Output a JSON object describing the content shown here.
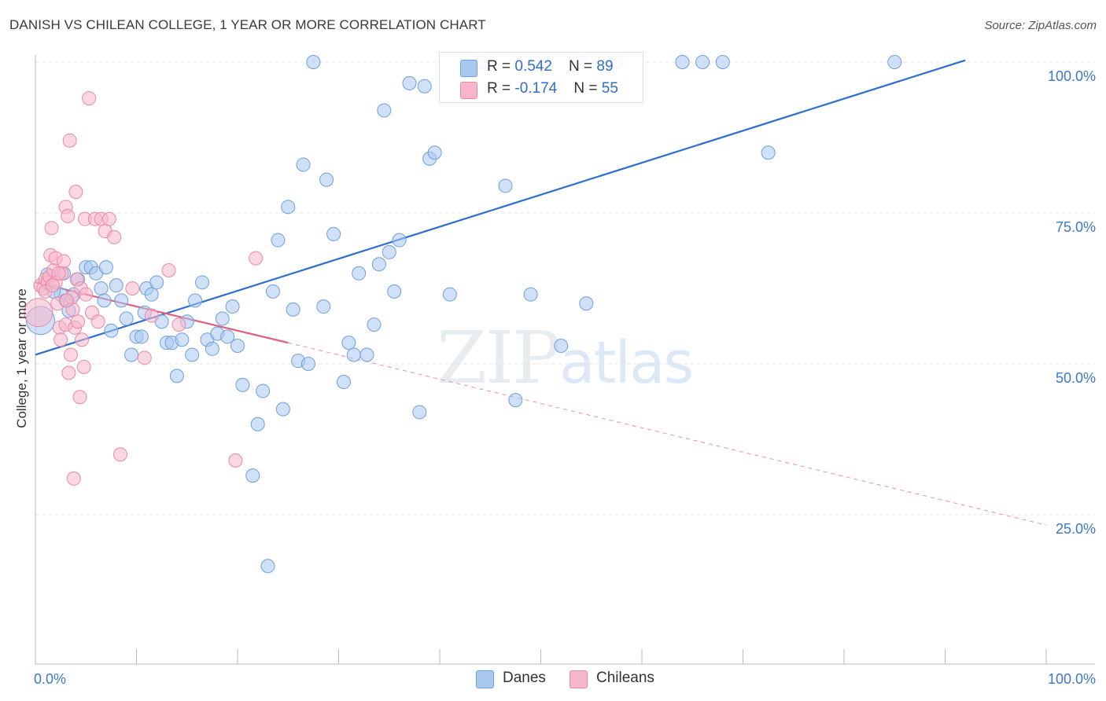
{
  "header": {
    "title": "DANISH VS CHILEAN COLLEGE, 1 YEAR OR MORE CORRELATION CHART",
    "source": "Source: ZipAtlas.com"
  },
  "watermark": {
    "zip": "ZIP",
    "atlas": "atlas"
  },
  "legend": {
    "danes": {
      "r_label": "R = ",
      "r_value": "0.542",
      "n_label": "N = ",
      "n_value": "89"
    },
    "chileans": {
      "r_label": "R = ",
      "r_value": "-0.174",
      "n_label": "N = ",
      "n_value": "55"
    }
  },
  "bottom_legend": {
    "danes": "Danes",
    "chileans": "Chileans"
  },
  "colors": {
    "danes_fill": "#a9c8f0",
    "danes_stroke": "#6f9fdc",
    "danes_line": "#2b6fcf",
    "chileans_fill": "#f7b6ca",
    "chileans_stroke": "#e889a8",
    "chileans_line": "#e0607f",
    "tick_text": "#3d78c9",
    "grid": "#e3e3e3"
  },
  "chart_data": {
    "type": "scatter",
    "title": "DANISH VS CHILEAN COLLEGE, 1 YEAR OR MORE CORRELATION CHART",
    "xlabel": "",
    "ylabel": "College, 1 year or more",
    "xlim": [
      0,
      100
    ],
    "ylim": [
      5,
      103
    ],
    "x_tick_labels": [
      {
        "value": 0,
        "label": "0.0%"
      },
      {
        "value": 100,
        "label": "100.0%"
      }
    ],
    "y_tick_labels": [
      {
        "value": 100,
        "label": "100.0%"
      },
      {
        "value": 75,
        "label": "75.0%"
      },
      {
        "value": 50,
        "label": "50.0%"
      },
      {
        "value": 25,
        "label": "25.0%"
      }
    ],
    "grid": true,
    "legend_position": "top-center",
    "series": [
      {
        "name": "Danes",
        "r": 0.542,
        "n": 89,
        "trend": {
          "x": [
            0,
            92
          ],
          "y": [
            51.5,
            100.3
          ],
          "dashed_to": null
        },
        "points": [
          [
            0.5,
            57.2
          ],
          [
            1.2,
            64.8
          ],
          [
            2.5,
            61.5
          ],
          [
            3.0,
            60.5
          ],
          [
            3.3,
            58.8
          ],
          [
            3.8,
            61.5
          ],
          [
            4.2,
            64.0
          ],
          [
            5.0,
            66.0
          ],
          [
            5.5,
            66.0
          ],
          [
            6.0,
            65.0
          ],
          [
            6.5,
            62.5
          ],
          [
            7.0,
            66.0
          ],
          [
            7.5,
            55.5
          ],
          [
            8.0,
            63.0
          ],
          [
            8.5,
            60.5
          ],
          [
            9.0,
            57.5
          ],
          [
            9.5,
            51.5
          ],
          [
            10.0,
            54.5
          ],
          [
            10.5,
            54.5
          ],
          [
            11.0,
            62.5
          ],
          [
            11.5,
            61.5
          ],
          [
            12.0,
            63.5
          ],
          [
            12.5,
            57.0
          ],
          [
            13.0,
            53.5
          ],
          [
            13.5,
            53.5
          ],
          [
            14.0,
            48.0
          ],
          [
            14.5,
            54.0
          ],
          [
            15.0,
            57.0
          ],
          [
            15.5,
            51.5
          ],
          [
            15.8,
            60.5
          ],
          [
            16.5,
            63.5
          ],
          [
            17.0,
            54.0
          ],
          [
            17.5,
            52.5
          ],
          [
            18.0,
            55.0
          ],
          [
            18.5,
            57.5
          ],
          [
            19.0,
            54.5
          ],
          [
            19.5,
            59.5
          ],
          [
            20.0,
            53.0
          ],
          [
            20.5,
            46.5
          ],
          [
            21.5,
            31.5
          ],
          [
            22.0,
            40.0
          ],
          [
            22.5,
            45.5
          ],
          [
            23.0,
            16.5
          ],
          [
            23.5,
            62.0
          ],
          [
            24.0,
            70.5
          ],
          [
            24.5,
            42.5
          ],
          [
            25.0,
            76.0
          ],
          [
            25.5,
            59.0
          ],
          [
            26.0,
            50.5
          ],
          [
            26.5,
            83.0
          ],
          [
            27.0,
            50.0
          ],
          [
            27.5,
            100.0
          ],
          [
            28.5,
            59.5
          ],
          [
            28.8,
            80.5
          ],
          [
            29.5,
            71.5
          ],
          [
            30.5,
            47.0
          ],
          [
            31.0,
            53.5
          ],
          [
            31.5,
            51.5
          ],
          [
            32.0,
            65.0
          ],
          [
            32.8,
            51.5
          ],
          [
            33.5,
            56.5
          ],
          [
            34.0,
            66.5
          ],
          [
            34.5,
            92.0
          ],
          [
            35.0,
            68.5
          ],
          [
            35.5,
            62.0
          ],
          [
            36.0,
            70.5
          ],
          [
            37.0,
            96.5
          ],
          [
            38.0,
            42.0
          ],
          [
            38.5,
            96.0
          ],
          [
            39.0,
            84.0
          ],
          [
            39.5,
            85.0
          ],
          [
            41.0,
            61.5
          ],
          [
            44.0,
            100.0
          ],
          [
            46.5,
            79.5
          ],
          [
            47.5,
            44.0
          ],
          [
            49.0,
            61.5
          ],
          [
            52.0,
            53.0
          ],
          [
            54.0,
            100.0
          ],
          [
            54.5,
            60.0
          ],
          [
            57.5,
            100.0
          ],
          [
            64.0,
            100.0
          ],
          [
            66.0,
            100.0
          ],
          [
            68.0,
            100.0
          ],
          [
            72.5,
            85.0
          ],
          [
            85.0,
            100.0
          ],
          [
            1.8,
            62.0
          ],
          [
            2.8,
            65.0
          ],
          [
            6.8,
            60.5
          ],
          [
            10.8,
            58.5
          ]
        ]
      },
      {
        "name": "Chileans",
        "r": -0.174,
        "n": 55,
        "trend": {
          "x": [
            0,
            25
          ],
          "y": [
            63.5,
            53.5
          ],
          "dashed_to": {
            "x": 100,
            "y": 23.3
          }
        },
        "points": [
          [
            0.3,
            58.5
          ],
          [
            0.5,
            63.0
          ],
          [
            0.8,
            62.5
          ],
          [
            1.0,
            64.0
          ],
          [
            1.2,
            63.5
          ],
          [
            1.4,
            64.5
          ],
          [
            1.5,
            68.0
          ],
          [
            1.6,
            72.5
          ],
          [
            1.8,
            65.5
          ],
          [
            2.0,
            63.5
          ],
          [
            2.0,
            67.5
          ],
          [
            2.2,
            60.0
          ],
          [
            2.4,
            56.0
          ],
          [
            2.5,
            54.0
          ],
          [
            2.6,
            65.0
          ],
          [
            2.8,
            67.0
          ],
          [
            3.0,
            56.5
          ],
          [
            3.0,
            76.0
          ],
          [
            3.2,
            74.5
          ],
          [
            3.3,
            48.5
          ],
          [
            3.4,
            87.0
          ],
          [
            3.5,
            51.5
          ],
          [
            3.6,
            61.0
          ],
          [
            3.7,
            59.0
          ],
          [
            3.8,
            31.0
          ],
          [
            3.9,
            56.0
          ],
          [
            4.0,
            78.5
          ],
          [
            4.1,
            64.0
          ],
          [
            4.2,
            57.0
          ],
          [
            4.4,
            44.5
          ],
          [
            4.5,
            62.5
          ],
          [
            4.6,
            54.0
          ],
          [
            4.8,
            49.5
          ],
          [
            4.9,
            74.0
          ],
          [
            5.0,
            61.5
          ],
          [
            5.3,
            94.0
          ],
          [
            5.6,
            58.5
          ],
          [
            5.9,
            74.0
          ],
          [
            6.2,
            57.0
          ],
          [
            6.5,
            74.0
          ],
          [
            6.9,
            72.0
          ],
          [
            7.3,
            74.0
          ],
          [
            7.8,
            71.0
          ],
          [
            8.4,
            35.0
          ],
          [
            9.6,
            62.5
          ],
          [
            10.8,
            51.0
          ],
          [
            11.5,
            58.0
          ],
          [
            13.2,
            65.5
          ],
          [
            14.2,
            56.5
          ],
          [
            19.8,
            34.0
          ],
          [
            21.8,
            67.5
          ],
          [
            1.0,
            62.0
          ],
          [
            1.7,
            63.0
          ],
          [
            2.3,
            65.0
          ],
          [
            3.1,
            60.5
          ]
        ]
      }
    ]
  }
}
